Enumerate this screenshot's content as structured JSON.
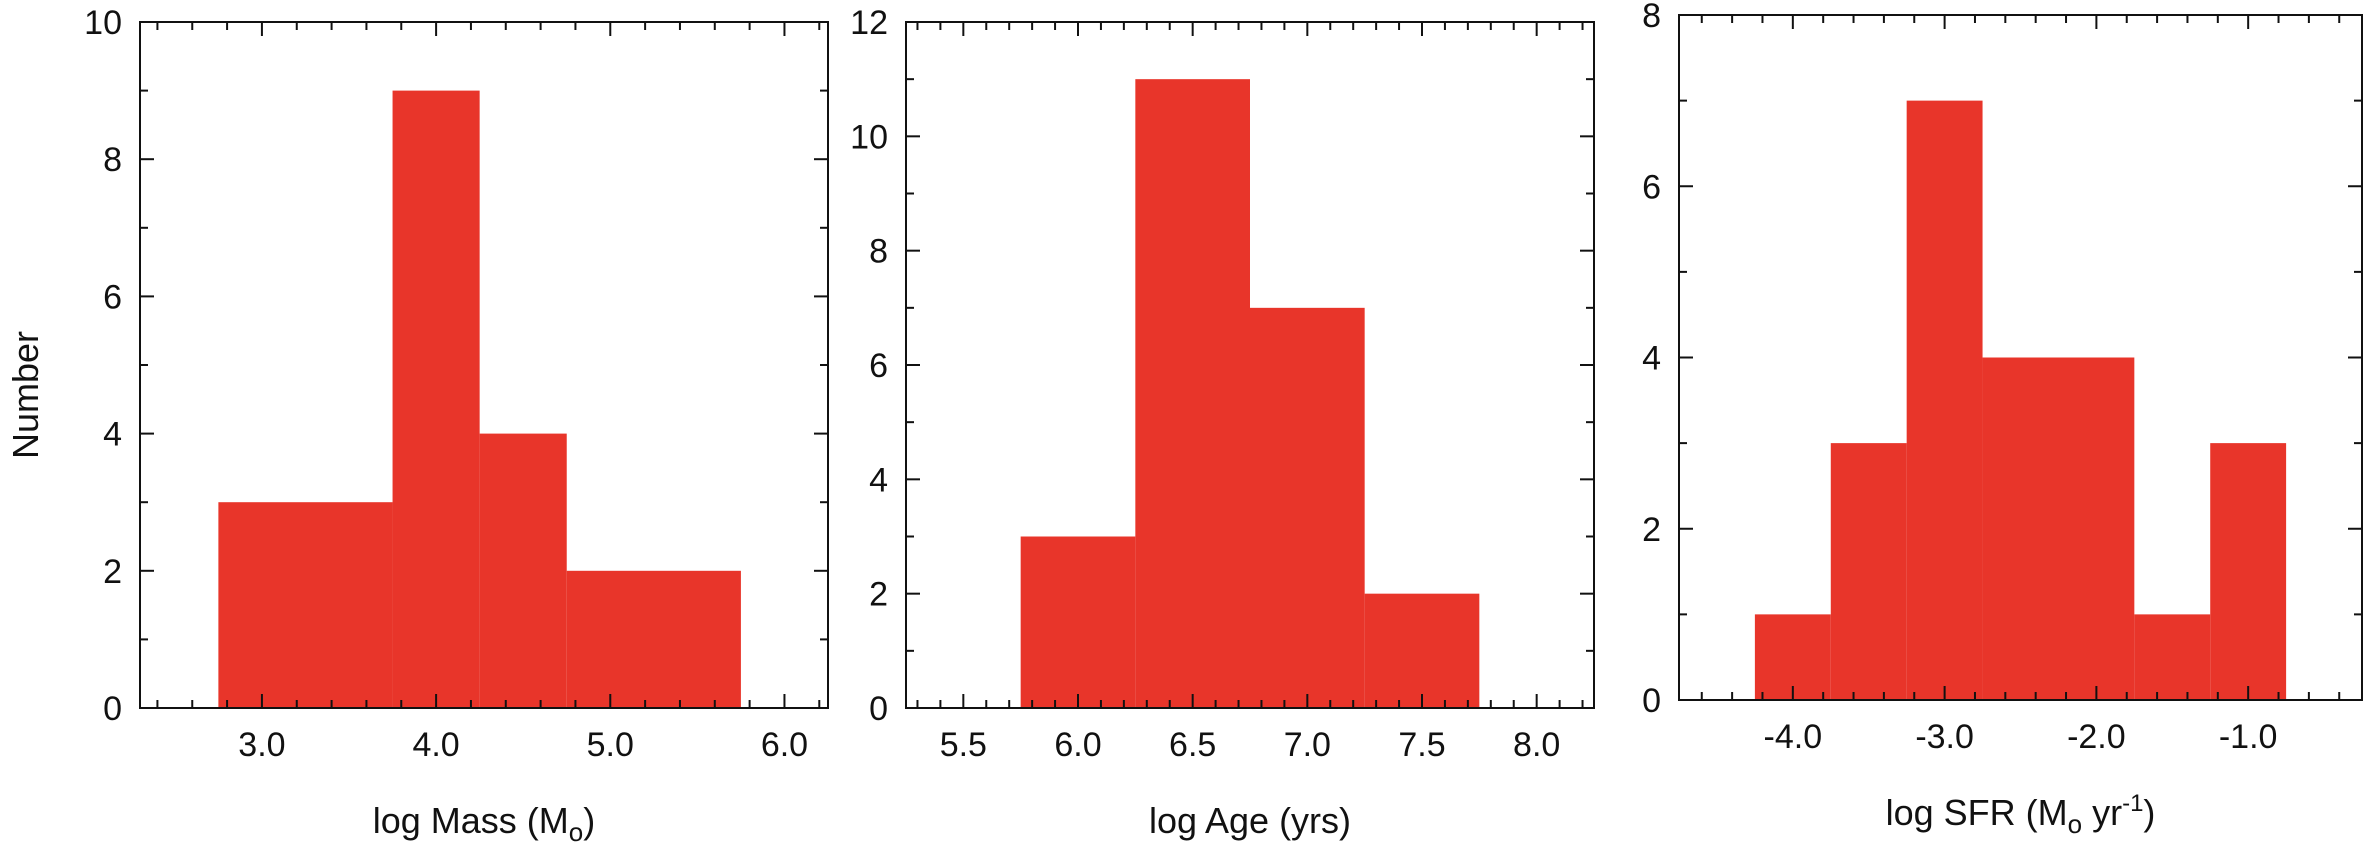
{
  "figure": {
    "y_label": "Number",
    "bar_color": "#e8352a"
  },
  "chart_data": [
    {
      "type": "bar",
      "title": "",
      "xlabel": "log Mass (M",
      "xlabel_sub": "o",
      "xlabel_end": ")",
      "ylabel": "Number",
      "xlim": [
        2.3,
        6.25
      ],
      "ylim": [
        0,
        10
      ],
      "xticks": [
        3.0,
        4.0,
        5.0,
        6.0
      ],
      "xtick_labels": [
        "3.0",
        "4.0",
        "5.0",
        "6.0"
      ],
      "yticks": [
        0,
        2,
        4,
        6,
        8,
        10
      ],
      "ytick_labels": [
        "0",
        "2",
        "4",
        "6",
        "8",
        "10"
      ],
      "bins": [
        {
          "x0": 2.75,
          "x1": 3.75,
          "value": 3
        },
        {
          "x0": 3.75,
          "x1": 4.25,
          "value": 9
        },
        {
          "x0": 4.25,
          "x1": 4.75,
          "value": 4
        },
        {
          "x0": 4.75,
          "x1": 5.75,
          "value": 2
        }
      ],
      "grid": false
    },
    {
      "type": "bar",
      "title": "",
      "xlabel": "log Age (yrs)",
      "xlabel_sub": "",
      "xlabel_end": "",
      "ylabel": "",
      "xlim": [
        5.25,
        8.25
      ],
      "ylim": [
        0,
        12
      ],
      "xticks": [
        5.5,
        6.0,
        6.5,
        7.0,
        7.5,
        8.0
      ],
      "xtick_labels": [
        "5.5",
        "6.0",
        "6.5",
        "7.0",
        "7.5",
        "8.0"
      ],
      "yticks": [
        0,
        2,
        4,
        6,
        8,
        10,
        12
      ],
      "ytick_labels": [
        "0",
        "2",
        "4",
        "6",
        "8",
        "10",
        "12"
      ],
      "bins": [
        {
          "x0": 5.75,
          "x1": 6.25,
          "value": 3
        },
        {
          "x0": 6.25,
          "x1": 6.75,
          "value": 11
        },
        {
          "x0": 6.75,
          "x1": 7.25,
          "value": 7
        },
        {
          "x0": 7.25,
          "x1": 7.75,
          "value": 2
        }
      ],
      "grid": false
    },
    {
      "type": "bar",
      "title": "",
      "xlabel": "log SFR (M",
      "xlabel_sub": "o",
      "xlabel_end": " yr",
      "xlabel_sup": "-1",
      "xlabel_close": ")",
      "ylabel": "",
      "xlim": [
        -4.75,
        -0.25
      ],
      "ylim": [
        0,
        8
      ],
      "xticks": [
        -4.0,
        -3.0,
        -2.0,
        -1.0
      ],
      "xtick_labels": [
        "-4.0",
        "-3.0",
        "-2.0",
        "-1.0"
      ],
      "yticks": [
        0,
        2,
        4,
        6,
        8
      ],
      "ytick_labels": [
        "0",
        "2",
        "4",
        "6",
        "8"
      ],
      "bins": [
        {
          "x0": -4.25,
          "x1": -3.75,
          "value": 1
        },
        {
          "x0": -3.75,
          "x1": -3.25,
          "value": 3
        },
        {
          "x0": -3.25,
          "x1": -2.75,
          "value": 7
        },
        {
          "x0": -2.75,
          "x1": -1.75,
          "value": 4
        },
        {
          "x0": -1.75,
          "x1": -1.25,
          "value": 1
        },
        {
          "x0": -1.25,
          "x1": -0.75,
          "value": 3
        }
      ],
      "grid": false
    }
  ]
}
